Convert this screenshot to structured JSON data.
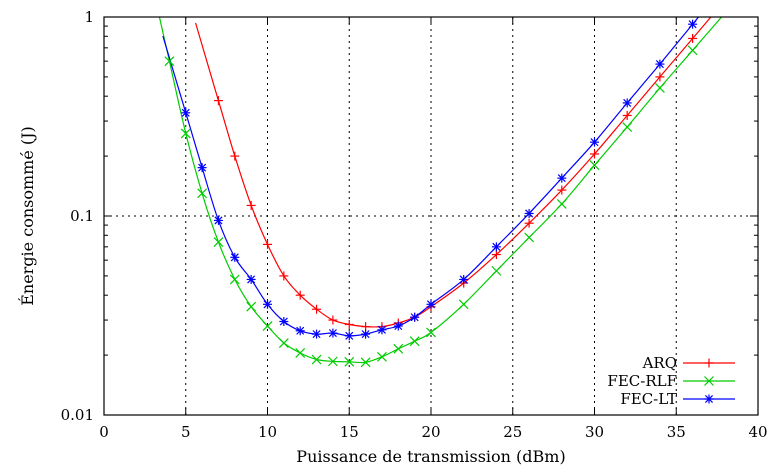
{
  "chart_data": {
    "type": "line",
    "title": "",
    "xlabel": "Puissance de transmission (dBm)",
    "ylabel": "Énergie consommé (J)",
    "xlim": [
      0,
      40
    ],
    "ylim": [
      0.01,
      1
    ],
    "yscale": "log",
    "grid": true,
    "legend_position": "bottom-right",
    "x_ticks": [
      "0",
      "5",
      "10",
      "15",
      "20",
      "25",
      "30",
      "35",
      "40"
    ],
    "y_ticks": [
      "0.01",
      "0.1",
      "1"
    ],
    "series": [
      {
        "name": "ARQ",
        "color": "#ff0000",
        "marker": "plus",
        "x": [
          7,
          8,
          9,
          10,
          11,
          12,
          13,
          14,
          15,
          16,
          17,
          18,
          19,
          20,
          22,
          24,
          26,
          28,
          30,
          32,
          34,
          36
        ],
        "y": [
          0.38,
          0.2,
          0.113,
          0.072,
          0.05,
          0.04,
          0.034,
          0.03,
          0.0285,
          0.0278,
          0.0278,
          0.029,
          0.031,
          0.035,
          0.046,
          0.064,
          0.092,
          0.135,
          0.205,
          0.32,
          0.5,
          0.78
        ]
      },
      {
        "name": "FEC-RLF",
        "color": "#00cc00",
        "marker": "cross",
        "x": [
          4,
          5,
          6,
          7,
          8,
          9,
          10,
          11,
          12,
          13,
          14,
          15,
          16,
          17,
          18,
          19,
          20,
          22,
          24,
          26,
          28,
          30,
          32,
          34,
          36
        ],
        "y": [
          0.6,
          0.26,
          0.13,
          0.074,
          0.048,
          0.035,
          0.028,
          0.023,
          0.0205,
          0.019,
          0.0186,
          0.0185,
          0.0184,
          0.0196,
          0.0215,
          0.0235,
          0.026,
          0.036,
          0.053,
          0.078,
          0.115,
          0.18,
          0.28,
          0.44,
          0.68
        ]
      },
      {
        "name": "FEC-LT",
        "color": "#0000ff",
        "marker": "star",
        "x": [
          5,
          6,
          7,
          8,
          9,
          10,
          11,
          12,
          13,
          14,
          15,
          16,
          17,
          18,
          19,
          20,
          22,
          24,
          26,
          28,
          30,
          32,
          34,
          36
        ],
        "y": [
          0.33,
          0.175,
          0.095,
          0.062,
          0.048,
          0.036,
          0.0295,
          0.0265,
          0.0255,
          0.0258,
          0.025,
          0.0255,
          0.0268,
          0.028,
          0.031,
          0.036,
          0.048,
          0.07,
          0.103,
          0.155,
          0.235,
          0.37,
          0.58,
          0.92
        ]
      }
    ]
  }
}
